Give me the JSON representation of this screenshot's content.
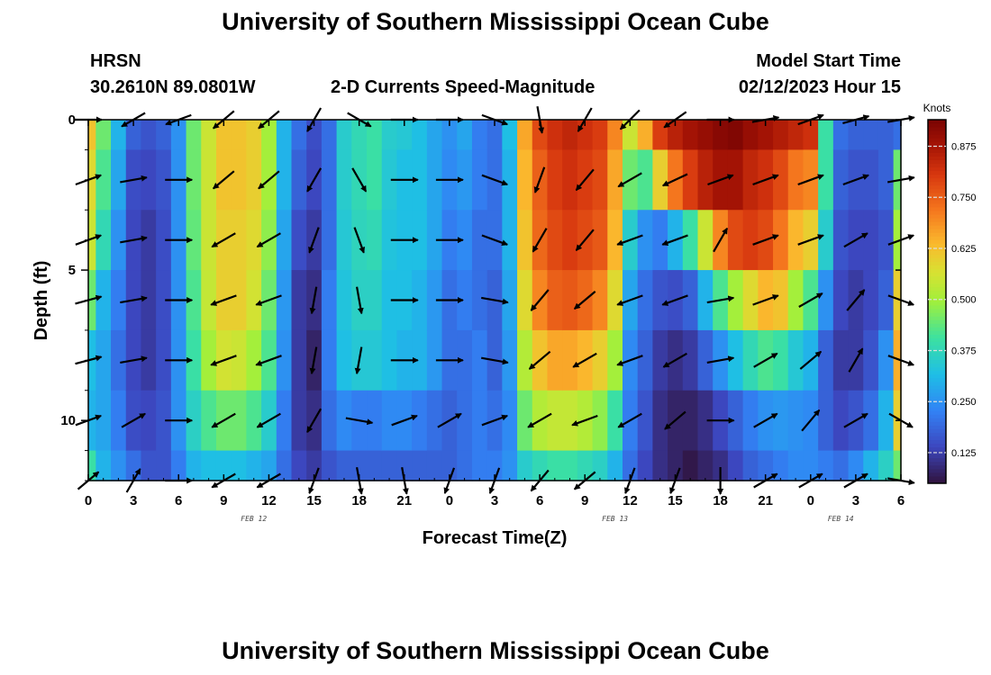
{
  "header": {
    "title": "University of Southern Mississippi Ocean Cube",
    "station": "HRSN",
    "location": "30.2610N  89.0801W",
    "subtitle": "2-D Currents Speed-Magnitude",
    "model_start_label": "Model Start Time",
    "model_start_value": "02/12/2023 Hour 15"
  },
  "footer": {
    "title": "University of Southern Mississippi Ocean Cube"
  },
  "chart_data": {
    "type": "heatmap",
    "title": "2-D Currents Speed-Magnitude",
    "xlabel": "Forecast Time(Z)",
    "ylabel": "Depth (ft)",
    "x_tick_labels": [
      "0",
      "3",
      "6",
      "9",
      "12",
      "15",
      "18",
      "21",
      "0",
      "3",
      "6",
      "9",
      "12",
      "15",
      "18",
      "21",
      "0",
      "3",
      "6"
    ],
    "date_labels": [
      "FEB 12",
      "FEB 13",
      "FEB 14"
    ],
    "date_label_hours": [
      11,
      35,
      50
    ],
    "x_range_hours": [
      0,
      54
    ],
    "y_tick_labels": [
      "0",
      "5",
      "10"
    ],
    "ylim": [
      0,
      12
    ],
    "y_inverted": true,
    "colorbar": {
      "title": "Knots",
      "tick_labels": [
        "0.125",
        "0.250",
        "0.375",
        "0.500",
        "0.625",
        "0.750",
        "0.875"
      ],
      "range": [
        0.05,
        0.94
      ]
    },
    "units": "knots",
    "depths_ft": [
      0,
      2,
      4,
      6,
      8,
      10,
      12
    ],
    "speed_profile_hours": [
      0,
      1,
      2,
      3,
      4,
      5,
      6,
      7,
      8,
      9,
      10,
      11,
      12,
      13,
      14,
      15,
      16,
      17,
      18,
      19,
      20,
      21,
      22,
      23,
      24,
      25,
      26,
      27,
      28,
      29,
      30,
      31,
      32,
      33,
      34,
      35,
      36,
      37,
      38,
      39,
      40,
      41,
      42,
      43,
      44,
      45,
      46,
      47,
      48,
      49,
      50,
      51,
      52,
      53,
      54
    ],
    "speed_profiles": [
      [
        0.62,
        0.45,
        0.3,
        0.18,
        0.16,
        0.18,
        0.25,
        0.45,
        0.55,
        0.62,
        0.62,
        0.6,
        0.5,
        0.3,
        0.2,
        0.15,
        0.2,
        0.35,
        0.38,
        0.4,
        0.35,
        0.34,
        0.32,
        0.28,
        0.25,
        0.28,
        0.22,
        0.2,
        0.32,
        0.66,
        0.78,
        0.82,
        0.84,
        0.82,
        0.8,
        0.7,
        0.55,
        0.65,
        0.8,
        0.85,
        0.88,
        0.9,
        0.92,
        0.93,
        0.9,
        0.88,
        0.86,
        0.84,
        0.82,
        0.4,
        0.2,
        0.18,
        0.18,
        0.18,
        0.2
      ],
      [
        0.58,
        0.42,
        0.28,
        0.15,
        0.14,
        0.16,
        0.25,
        0.45,
        0.55,
        0.62,
        0.62,
        0.6,
        0.5,
        0.3,
        0.18,
        0.14,
        0.2,
        0.35,
        0.38,
        0.4,
        0.34,
        0.32,
        0.32,
        0.28,
        0.24,
        0.26,
        0.22,
        0.2,
        0.3,
        0.64,
        0.75,
        0.8,
        0.82,
        0.8,
        0.78,
        0.66,
        0.45,
        0.42,
        0.6,
        0.72,
        0.8,
        0.85,
        0.88,
        0.88,
        0.84,
        0.82,
        0.78,
        0.72,
        0.7,
        0.4,
        0.18,
        0.16,
        0.16,
        0.18,
        0.45
      ],
      [
        0.55,
        0.38,
        0.25,
        0.14,
        0.12,
        0.15,
        0.25,
        0.44,
        0.55,
        0.6,
        0.6,
        0.58,
        0.48,
        0.28,
        0.15,
        0.12,
        0.2,
        0.34,
        0.37,
        0.38,
        0.33,
        0.32,
        0.32,
        0.28,
        0.22,
        0.24,
        0.2,
        0.2,
        0.3,
        0.62,
        0.74,
        0.78,
        0.8,
        0.78,
        0.76,
        0.64,
        0.35,
        0.25,
        0.22,
        0.3,
        0.4,
        0.55,
        0.7,
        0.78,
        0.8,
        0.78,
        0.72,
        0.64,
        0.6,
        0.35,
        0.16,
        0.14,
        0.14,
        0.16,
        0.5
      ],
      [
        0.45,
        0.3,
        0.22,
        0.14,
        0.12,
        0.15,
        0.25,
        0.42,
        0.54,
        0.6,
        0.6,
        0.56,
        0.45,
        0.26,
        0.12,
        0.1,
        0.22,
        0.33,
        0.36,
        0.36,
        0.32,
        0.32,
        0.3,
        0.26,
        0.2,
        0.22,
        0.2,
        0.18,
        0.28,
        0.58,
        0.7,
        0.75,
        0.76,
        0.74,
        0.7,
        0.58,
        0.28,
        0.2,
        0.16,
        0.15,
        0.18,
        0.3,
        0.42,
        0.5,
        0.58,
        0.64,
        0.62,
        0.5,
        0.42,
        0.25,
        0.14,
        0.12,
        0.14,
        0.18,
        0.6
      ],
      [
        0.32,
        0.28,
        0.2,
        0.14,
        0.12,
        0.15,
        0.25,
        0.4,
        0.5,
        0.56,
        0.55,
        0.5,
        0.42,
        0.25,
        0.12,
        0.08,
        0.22,
        0.32,
        0.34,
        0.34,
        0.32,
        0.3,
        0.3,
        0.26,
        0.2,
        0.2,
        0.22,
        0.18,
        0.26,
        0.52,
        0.62,
        0.66,
        0.66,
        0.64,
        0.6,
        0.5,
        0.24,
        0.18,
        0.12,
        0.1,
        0.12,
        0.18,
        0.25,
        0.32,
        0.38,
        0.42,
        0.4,
        0.34,
        0.3,
        0.18,
        0.12,
        0.12,
        0.16,
        0.25,
        0.65
      ],
      [
        0.3,
        0.28,
        0.22,
        0.15,
        0.14,
        0.16,
        0.25,
        0.36,
        0.42,
        0.45,
        0.45,
        0.42,
        0.35,
        0.22,
        0.12,
        0.1,
        0.2,
        0.24,
        0.22,
        0.22,
        0.24,
        0.24,
        0.22,
        0.2,
        0.18,
        0.2,
        0.22,
        0.2,
        0.24,
        0.45,
        0.52,
        0.54,
        0.54,
        0.52,
        0.48,
        0.4,
        0.22,
        0.16,
        0.1,
        0.08,
        0.08,
        0.1,
        0.14,
        0.18,
        0.22,
        0.25,
        0.26,
        0.25,
        0.24,
        0.18,
        0.14,
        0.16,
        0.2,
        0.3,
        0.6
      ],
      [
        0.4,
        0.3,
        0.25,
        0.2,
        0.16,
        0.16,
        0.22,
        0.3,
        0.32,
        0.32,
        0.32,
        0.3,
        0.28,
        0.2,
        0.14,
        0.12,
        0.16,
        0.18,
        0.18,
        0.18,
        0.18,
        0.18,
        0.18,
        0.18,
        0.18,
        0.2,
        0.22,
        0.22,
        0.25,
        0.35,
        0.38,
        0.4,
        0.4,
        0.38,
        0.36,
        0.3,
        0.2,
        0.14,
        0.1,
        0.08,
        0.06,
        0.08,
        0.1,
        0.14,
        0.18,
        0.2,
        0.22,
        0.24,
        0.24,
        0.22,
        0.2,
        0.24,
        0.3,
        0.36,
        0.45
      ]
    ],
    "vectors": {
      "hours": [
        0,
        3,
        6,
        9,
        12,
        15,
        18,
        21,
        24,
        27,
        30,
        33,
        36,
        39,
        42,
        45,
        48,
        51,
        54
      ],
      "depths_ft": [
        0,
        2,
        4,
        6,
        8,
        10,
        12
      ],
      "directions_deg": [
        [
          90,
          240,
          250,
          230,
          230,
          210,
          120,
          90,
          90,
          110,
          170,
          210,
          225,
          235,
          90,
          80,
          70,
          75,
          80
        ],
        [
          70,
          80,
          90,
          230,
          230,
          210,
          150,
          90,
          90,
          110,
          200,
          220,
          240,
          245,
          70,
          70,
          70,
          70,
          80
        ],
        [
          70,
          80,
          90,
          240,
          240,
          200,
          160,
          90,
          90,
          110,
          210,
          220,
          250,
          250,
          30,
          70,
          70,
          60,
          70
        ],
        [
          75,
          80,
          90,
          250,
          250,
          190,
          170,
          90,
          90,
          100,
          220,
          230,
          250,
          250,
          80,
          70,
          60,
          40,
          110
        ],
        [
          75,
          80,
          90,
          250,
          250,
          190,
          190,
          90,
          90,
          100,
          230,
          240,
          250,
          240,
          80,
          60,
          50,
          30,
          110
        ],
        [
          70,
          60,
          90,
          240,
          240,
          210,
          100,
          70,
          60,
          70,
          240,
          250,
          240,
          230,
          90,
          60,
          40,
          60,
          120
        ],
        [
          50,
          30,
          90,
          240,
          240,
          200,
          170,
          170,
          200,
          200,
          220,
          230,
          200,
          200,
          180,
          60,
          60,
          60,
          100
        ]
      ]
    },
    "grid": false,
    "legend": "colorbar-right"
  }
}
